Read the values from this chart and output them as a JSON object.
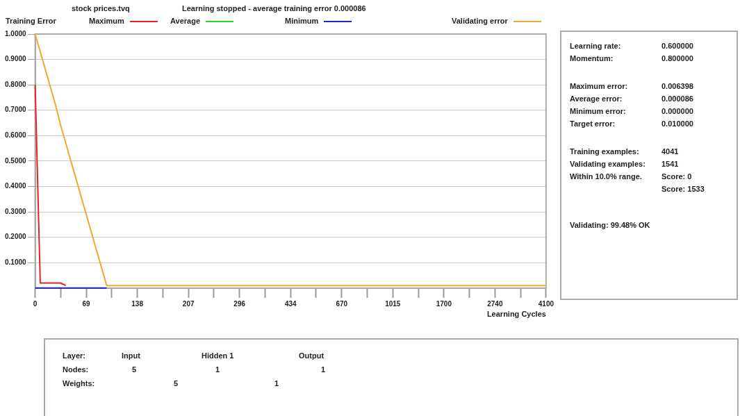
{
  "chart_data": {
    "type": "line",
    "title": "stock prices.tvq",
    "subtitle": "Learning stopped - average training error 0.000086",
    "ylabel": "Training Error",
    "xlabel": "Learning Cycles",
    "categories": [
      "0",
      null,
      null,
      null,
      null,
      null,
      null,
      null,
      null,
      null,
      "69",
      null,
      null,
      null,
      null,
      null,
      null,
      null,
      null,
      null,
      "138",
      null,
      null,
      null,
      null,
      null,
      null,
      null,
      null,
      null,
      "207",
      null,
      null,
      null,
      null,
      null,
      null,
      null,
      null,
      null,
      "296",
      null,
      null,
      null,
      null,
      null,
      null,
      null,
      null,
      null,
      "434",
      null,
      null,
      null,
      null,
      null,
      null,
      null,
      null,
      null,
      "670",
      null,
      null,
      null,
      null,
      null,
      null,
      null,
      null,
      null,
      "1015",
      null,
      null,
      null,
      null,
      null,
      null,
      null,
      null,
      null,
      "1700",
      null,
      null,
      null,
      null,
      null,
      null,
      null,
      null,
      null,
      "2740",
      null,
      null,
      null,
      null,
      null,
      null,
      null,
      null,
      null,
      "4100"
    ],
    "ylim": [
      0,
      1
    ],
    "yticks": [
      {
        "value": 0.1,
        "label": "0.1000"
      },
      {
        "value": 0.2,
        "label": "0.2000"
      },
      {
        "value": 0.3,
        "label": "0.3000"
      },
      {
        "value": 0.4,
        "label": "0.4000"
      },
      {
        "value": 0.5,
        "label": "0.5000"
      },
      {
        "value": 0.6,
        "label": "0.6000"
      },
      {
        "value": 0.7,
        "label": "0.7000"
      },
      {
        "value": 0.8,
        "label": "0.8000"
      },
      {
        "value": 0.9,
        "label": "0.9000"
      },
      {
        "value": 1,
        "label": "1.0000"
      }
    ],
    "grid": "y",
    "legend": "top",
    "marker": "none",
    "line_style": "solid",
    "series": [
      {
        "name": "Maximum",
        "color": "#e8202a",
        "values": [
          0.8,
          0.02,
          0.02,
          0.02,
          0.02,
          0.02,
          0.01,
          null,
          null,
          null,
          null,
          null,
          null,
          null,
          null,
          null,
          null,
          null,
          null,
          null,
          null,
          null,
          null,
          null,
          null,
          null,
          null,
          null,
          null,
          null,
          null,
          null,
          null,
          null,
          null,
          null,
          null,
          null,
          null,
          null,
          null,
          null,
          null,
          null,
          null,
          null,
          null,
          null,
          null,
          null,
          null,
          null,
          null,
          null,
          null,
          null,
          null,
          null,
          null,
          null,
          null,
          null,
          null,
          null,
          null,
          null,
          null,
          null,
          null,
          null,
          null,
          null,
          null,
          null,
          null,
          null,
          null,
          null,
          null,
          null,
          null,
          null,
          null,
          null,
          null,
          null,
          null,
          null,
          null,
          null,
          null,
          null,
          null,
          null,
          null,
          null,
          null,
          null,
          null,
          null,
          null
        ]
      },
      {
        "name": "Average",
        "color": "#22dd22",
        "values": [
          null,
          null,
          null,
          null,
          null,
          null,
          null,
          null,
          null,
          null,
          null,
          null,
          null,
          null,
          null,
          null,
          null,
          null,
          null,
          null,
          null,
          null,
          null,
          null,
          null,
          null,
          null,
          null,
          null,
          null,
          null,
          null,
          null,
          null,
          null,
          null,
          null,
          null,
          null,
          null,
          null,
          null,
          null,
          null,
          null,
          null,
          null,
          null,
          null,
          null,
          null,
          null,
          null,
          null,
          null,
          null,
          null,
          null,
          null,
          null,
          null,
          null,
          null,
          null,
          null,
          null,
          null,
          null,
          null,
          null,
          null,
          null,
          null,
          null,
          null,
          null,
          null,
          null,
          null,
          null,
          null,
          null,
          null,
          null,
          null,
          null,
          null,
          null,
          null,
          null,
          null,
          null,
          null,
          null,
          null,
          null,
          null,
          null,
          null,
          null,
          null
        ]
      },
      {
        "name": "Minimum",
        "color": "#2222cc",
        "values": [
          0,
          0,
          0,
          0,
          0,
          0,
          0,
          0,
          0,
          0,
          0,
          0,
          0,
          0,
          0,
          null,
          null,
          null,
          null,
          null,
          null,
          null,
          null,
          null,
          null,
          null,
          null,
          null,
          null,
          null,
          null,
          null,
          null,
          null,
          null,
          null,
          null,
          null,
          null,
          null,
          null,
          null,
          null,
          null,
          null,
          null,
          null,
          null,
          null,
          null,
          null,
          null,
          null,
          null,
          null,
          null,
          null,
          null,
          null,
          null,
          null,
          null,
          null,
          null,
          null,
          null,
          null,
          null,
          null,
          null,
          null,
          null,
          null,
          null,
          null,
          null,
          null,
          null,
          null,
          null,
          null,
          null,
          null,
          null,
          null,
          null,
          null,
          null,
          null,
          null,
          null,
          null,
          null,
          null,
          null,
          null,
          null,
          null,
          null,
          null,
          null
        ]
      },
      {
        "name": "Validating error",
        "color": "#f0a830",
        "values": [
          1,
          0.93,
          0.86,
          0.79,
          0.72,
          0.64,
          0.57,
          0.5,
          0.43,
          0.36,
          0.29,
          0.22,
          0.15,
          0.08,
          0.01,
          0.01,
          0.01,
          0.01,
          0.01,
          0.01,
          0.01,
          0.01,
          0.01,
          0.01,
          0.01,
          0.01,
          0.01,
          0.01,
          0.01,
          0.01,
          0.01,
          0.01,
          0.01,
          0.01,
          0.01,
          0.01,
          0.01,
          0.01,
          0.01,
          0.01,
          0.01,
          0.01,
          0.01,
          0.01,
          0.01,
          0.01,
          0.01,
          0.01,
          0.01,
          0.01,
          0.01,
          0.01,
          0.01,
          0.01,
          0.01,
          0.01,
          0.01,
          0.01,
          0.01,
          0.01,
          0.01,
          0.01,
          0.01,
          0.01,
          0.01,
          0.01,
          0.01,
          0.01,
          0.01,
          0.01,
          0.01,
          0.01,
          0.01,
          0.01,
          0.01,
          0.01,
          0.01,
          0.01,
          0.01,
          0.01,
          0.01,
          0.01,
          0.01,
          0.01,
          0.01,
          0.01,
          0.01,
          0.01,
          0.01,
          0.01,
          0.01,
          0.01,
          0.01,
          0.01,
          0.01,
          0.01,
          0.01,
          0.01,
          0.01,
          0.01,
          0.01
        ]
      }
    ],
    "annotations": [
      "Learning rate:",
      "0.600000",
      "Momentum:",
      "0.800000",
      "Maximum error:",
      "0.006398",
      "Average error:",
      "0.000086",
      "Minimum error:",
      "0.000000",
      "Target error:",
      "0.010000",
      "Training examples:",
      "4041",
      "Validating examples:",
      "1541",
      "Within 10.0% range.",
      "Score: 0",
      "Score: 1533",
      "Validating: 99.48% OK",
      "Layer:",
      "Input",
      "Hidden 1",
      "Output",
      "Nodes:",
      "5",
      "1",
      "1",
      "Weights:",
      "5",
      "1"
    ]
  }
}
